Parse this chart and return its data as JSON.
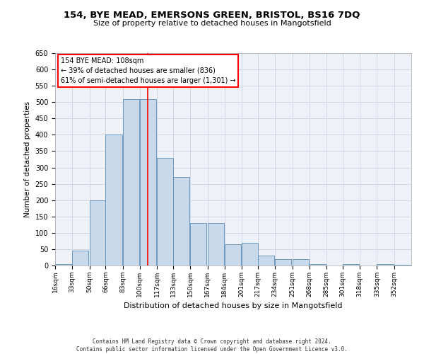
{
  "title1": "154, BYE MEAD, EMERSONS GREEN, BRISTOL, BS16 7DQ",
  "title2": "Size of property relative to detached houses in Mangotsfield",
  "xlabel": "Distribution of detached houses by size in Mangotsfield",
  "ylabel": "Number of detached properties",
  "annotation_line1": "154 BYE MEAD: 108sqm",
  "annotation_line2": "← 39% of detached houses are smaller (836)",
  "annotation_line3": "61% of semi-detached houses are larger (1,301) →",
  "footnote1": "Contains HM Land Registry data © Crown copyright and database right 2024.",
  "footnote2": "Contains public sector information licensed under the Open Government Licence v3.0.",
  "bin_labels": [
    "16sqm",
    "33sqm",
    "50sqm",
    "66sqm",
    "83sqm",
    "100sqm",
    "117sqm",
    "133sqm",
    "150sqm",
    "167sqm",
    "184sqm",
    "201sqm",
    "217sqm",
    "234sqm",
    "251sqm",
    "268sqm",
    "285sqm",
    "301sqm",
    "318sqm",
    "335sqm",
    "352sqm"
  ],
  "bin_edges": [
    16,
    33,
    50,
    66,
    83,
    100,
    117,
    133,
    150,
    167,
    184,
    201,
    217,
    234,
    251,
    268,
    285,
    301,
    318,
    335,
    352
  ],
  "bar_heights": [
    5,
    45,
    200,
    400,
    510,
    510,
    330,
    270,
    130,
    130,
    65,
    70,
    30,
    20,
    20,
    5,
    0,
    5,
    0,
    5,
    3
  ],
  "bar_color": "#c9d9ec",
  "bar_edge_color": "#5b8db8",
  "grid_color": "#d0d8e8",
  "background_color": "#eef2f8",
  "vline_x": 108,
  "vline_color": "red",
  "ylim": [
    0,
    650
  ],
  "yticks": [
    0,
    50,
    100,
    150,
    200,
    250,
    300,
    350,
    400,
    450,
    500,
    550,
    600,
    650
  ]
}
